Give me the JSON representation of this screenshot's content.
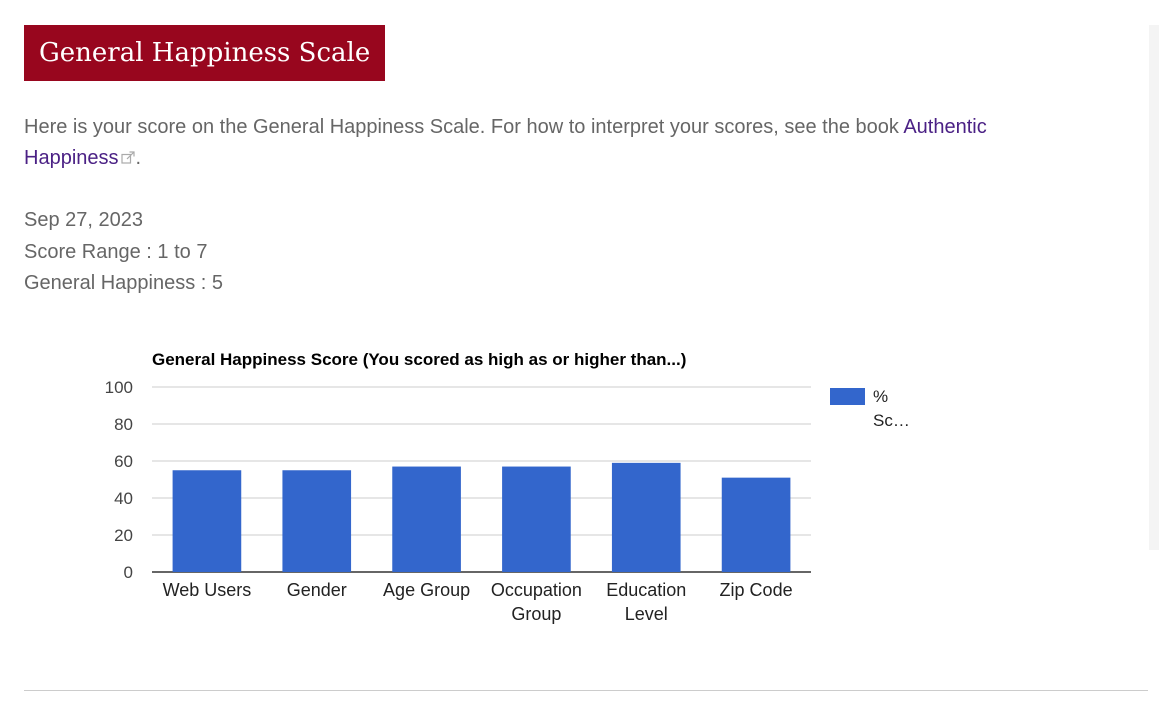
{
  "page": {
    "title": "General Happiness Scale",
    "intro_text": "Here is your score on the General Happiness Scale. For how to interpret your scores, see the book ",
    "intro_link": "Authentic Happiness",
    "intro_end": ".",
    "date": "Sep 27, 2023",
    "score_range": "Score Range : 1 to 7",
    "general_happiness": "General Happiness : 5"
  },
  "icons": {
    "external_link": "external-link-icon"
  },
  "colors": {
    "banner": "#98061e",
    "link": "#4b2185",
    "bar": "#3366cc",
    "text": "#666666"
  },
  "chart_data": {
    "type": "bar",
    "title": "General Happiness Score (You scored as high as or higher than...)",
    "categories": [
      "Web Users",
      "Gender",
      "Age Group",
      "Occupation Group",
      "Education Level",
      "Zip Code"
    ],
    "category_lines": [
      [
        "Web Users"
      ],
      [
        "Gender"
      ],
      [
        "Age Group"
      ],
      [
        "Occupation",
        "Group"
      ],
      [
        "Education",
        "Level"
      ],
      [
        "Zip Code"
      ]
    ],
    "series": [
      {
        "name": "% Sc…",
        "values": [
          55,
          55,
          57,
          57,
          59,
          51
        ]
      }
    ],
    "legend_lines": [
      "%",
      "Sc…"
    ],
    "ylim": [
      0,
      100
    ],
    "yticks": [
      0,
      20,
      40,
      60,
      80,
      100
    ],
    "grid": true,
    "legend": "right",
    "xlabel": "",
    "ylabel": ""
  }
}
